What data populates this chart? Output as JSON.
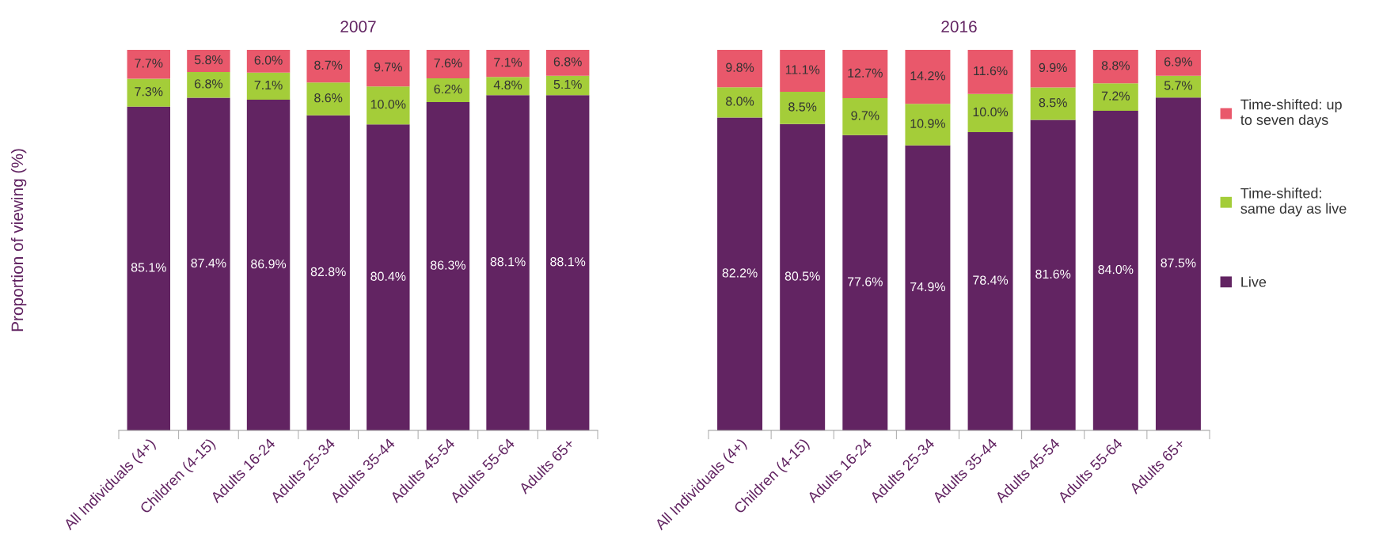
{
  "chart_data": [
    {
      "type": "bar",
      "title": "2007",
      "ylabel": "Proportion of viewing (%)",
      "stacked": true,
      "ylim": [
        0,
        100
      ],
      "tick_labels": "x",
      "categories": [
        "All Individuals (4+)",
        "Children (4-15)",
        "Adults 16-24",
        "Adults 25-34",
        "Adults 35-44",
        "Adults 45-54",
        "Adults 55-64",
        "Adults 65+"
      ],
      "series": [
        {
          "color": "#622462",
          "values": [
            85.1,
            87.4,
            86.9,
            82.8,
            80.4,
            86.3,
            88.1,
            88.1
          ],
          "value_labels": [
            "85.1%",
            "87.4%",
            "86.9%",
            "82.8%",
            "80.4%",
            "86.3%",
            "88.1%",
            "88.1%"
          ]
        },
        {
          "color": "#a4cd39",
          "values": [
            7.3,
            6.8,
            7.1,
            8.6,
            10.0,
            6.2,
            4.8,
            5.1
          ],
          "value_labels": [
            "7.3%",
            "6.8%",
            "7.1%",
            "8.6%",
            "10.0%",
            "6.2%",
            "4.8%",
            "5.1%"
          ]
        },
        {
          "color": "#e9586b",
          "values": [
            7.7,
            5.8,
            6.0,
            8.7,
            9.7,
            7.6,
            7.1,
            6.8
          ],
          "value_labels": [
            "7.7%",
            "5.8%",
            "6.0%",
            "8.7%",
            "9.7%",
            "7.6%",
            "7.1%",
            "6.8%"
          ]
        }
      ]
    },
    {
      "type": "bar",
      "title": "2016",
      "stacked": true,
      "ylim": [
        0,
        100
      ],
      "tick_labels": "x",
      "legend": "right",
      "categories": [
        "All Individuals (4+)",
        "Children (4-15)",
        "Adults 16-24",
        "Adults 25-34",
        "Adults 35-44",
        "Adults 45-54",
        "Adults 55-64",
        "Adults 65+"
      ],
      "series": [
        {
          "name": "Live",
          "color": "#622462",
          "values": [
            82.2,
            80.5,
            77.6,
            74.9,
            78.4,
            81.6,
            84.0,
            87.5
          ],
          "value_labels": [
            "82.2%",
            "80.5%",
            "77.6%",
            "74.9%",
            "78.4%",
            "81.6%",
            "84.0%",
            "87.5%"
          ]
        },
        {
          "name": "Time-shifted: same day as live",
          "color": "#a4cd39",
          "values": [
            8.0,
            8.5,
            9.7,
            10.9,
            10.0,
            8.5,
            7.2,
            5.7
          ],
          "value_labels": [
            "8.0%",
            "8.5%",
            "9.7%",
            "10.9%",
            "10.0%",
            "8.5%",
            "7.2%",
            "5.7%"
          ]
        },
        {
          "name": "Time-shifted: up to seven days",
          "color": "#e9586b",
          "values": [
            9.8,
            11.1,
            12.7,
            14.2,
            11.6,
            9.9,
            8.8,
            6.9
          ],
          "value_labels": [
            "9.8%",
            "11.1%",
            "12.7%",
            "14.2%",
            "11.6%",
            "9.9%",
            "8.8%",
            "6.9%"
          ]
        }
      ]
    }
  ]
}
